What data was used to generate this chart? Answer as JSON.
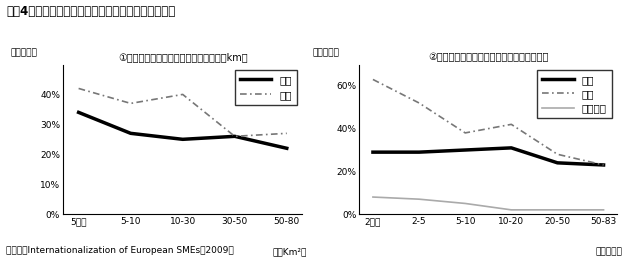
{
  "title": "図衠4　国土・人口規模と中小企業の海外展開の関係",
  "source": "（出所）Internationalization of European SMEs（2009）",
  "chart1": {
    "subtitle": "①国土の規模と中小企業の海外展開（万km）",
    "xlabel": "（万Km²）",
    "ylabel": "（構成比）",
    "xticks": [
      "5未満",
      "5-10",
      "10-30",
      "30-50",
      "50-80"
    ],
    "ylim": [
      0,
      50
    ],
    "yticks": [
      0,
      10,
      20,
      30,
      40
    ],
    "yticklabels": [
      "0%",
      "10%",
      "20%",
      "30%",
      "40%"
    ],
    "export": [
      34,
      27,
      25,
      26,
      22
    ],
    "import_": [
      42,
      37,
      40,
      26,
      27
    ],
    "export_label": "輸出",
    "import_label": "輸入"
  },
  "chart2": {
    "subtitle": "②人口規模と中小企業の海外展開（百万人）",
    "xlabel": "（百万人）",
    "ylabel": "（構成比）",
    "xticks": [
      "2未満",
      "2-5",
      "5-10",
      "10-20",
      "20-50",
      "50-83"
    ],
    "ylim": [
      0,
      70
    ],
    "yticks": [
      0,
      20,
      40,
      60
    ],
    "yticklabels": [
      "0%",
      "20%",
      "40%",
      "60%"
    ],
    "export": [
      29,
      29,
      30,
      31,
      24,
      23
    ],
    "import_": [
      63,
      52,
      38,
      42,
      28,
      23
    ],
    "invest": [
      8,
      7,
      5,
      2,
      2,
      2
    ],
    "export_label": "輸出",
    "import_label": "輸入",
    "invest_label": "海外投資"
  },
  "colors": {
    "export": "#000000",
    "import_": "#777777",
    "invest": "#aaaaaa"
  }
}
